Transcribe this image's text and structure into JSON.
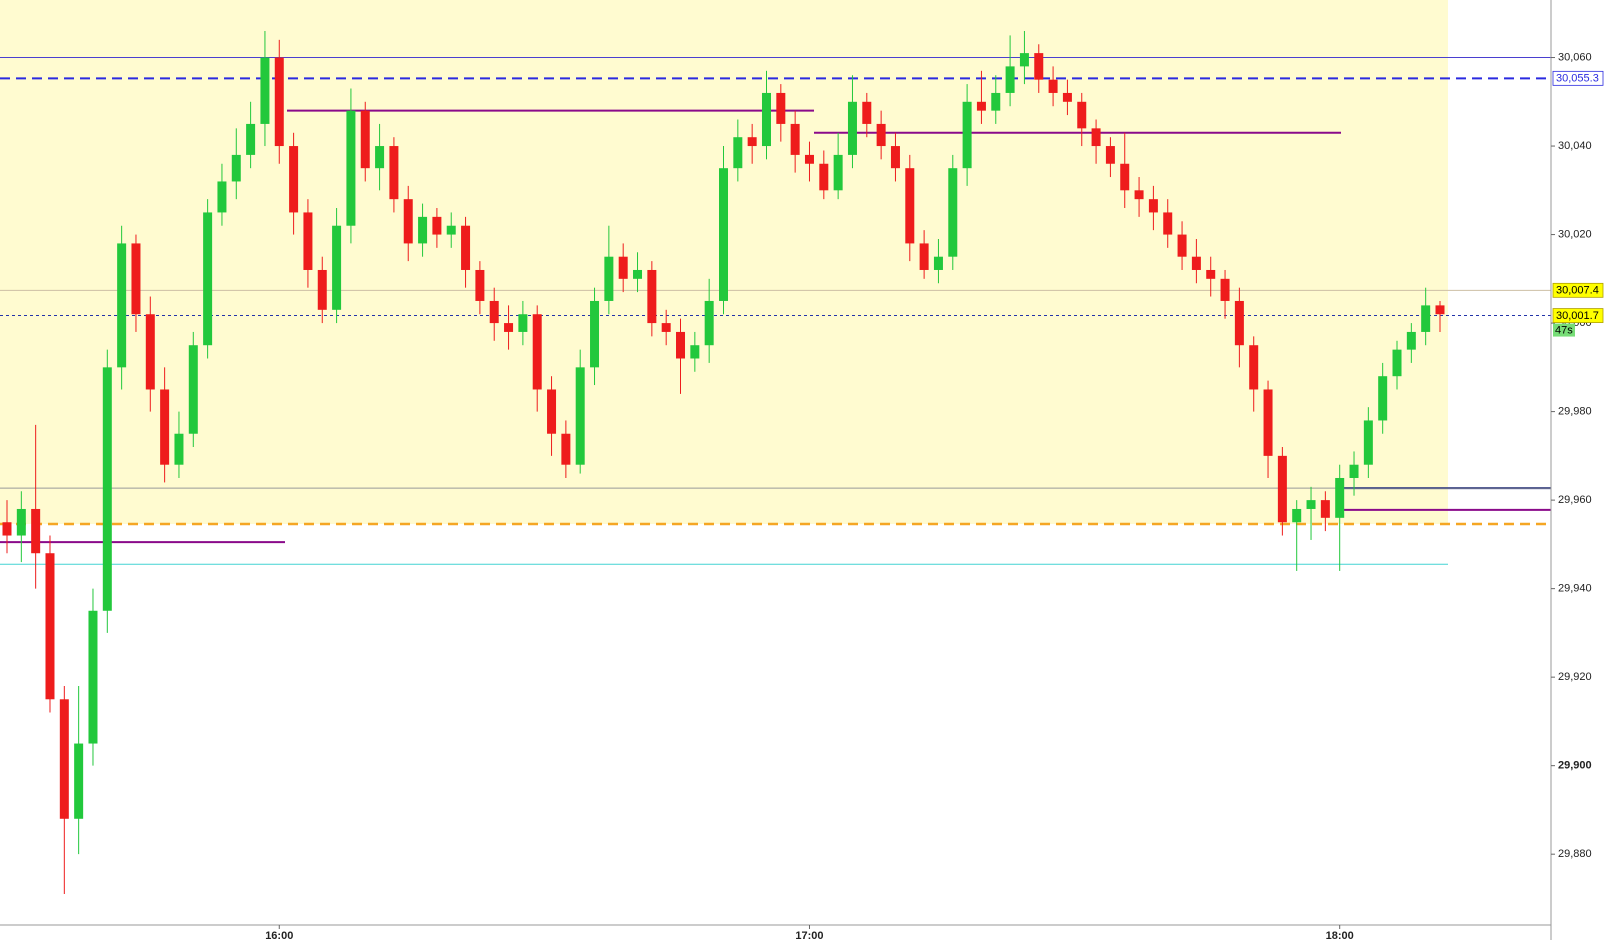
{
  "chart_data": {
    "type": "candlestick",
    "x": [
      null,
      null,
      null,
      null,
      null,
      null,
      null,
      null,
      null,
      null,
      null,
      null,
      null,
      null,
      null,
      null,
      null,
      null,
      null,
      "16:00",
      null,
      null,
      null,
      null,
      null,
      null,
      null,
      null,
      null,
      null,
      null,
      null,
      null,
      null,
      null,
      null,
      null,
      null,
      null,
      null,
      null,
      null,
      null,
      null,
      null,
      null,
      null,
      null,
      null,
      null,
      null,
      null,
      null,
      null,
      null,
      null,
      "17:00",
      null,
      null,
      null,
      null,
      null,
      null,
      null,
      null,
      null,
      null,
      null,
      null,
      null,
      null,
      null,
      null,
      null,
      null,
      null,
      null,
      null,
      null,
      null,
      null,
      null,
      null,
      null,
      null,
      null,
      null,
      null,
      null,
      null,
      null,
      null,
      null,
      "18:00",
      null,
      null,
      null,
      null,
      null,
      null,
      null
    ],
    "open": [
      29955,
      29952,
      29958,
      29948,
      29915,
      29888,
      29905,
      29935,
      29990,
      30018,
      30002,
      29985,
      29968,
      29975,
      29995,
      30025,
      30032,
      30038,
      30045,
      30060,
      30040,
      30025,
      30012,
      30003,
      30022,
      30048,
      30035,
      30040,
      30028,
      30018,
      30024,
      30020,
      30022,
      30012,
      30005,
      30000,
      29998,
      30002,
      29985,
      29975,
      29968,
      29990,
      30005,
      30015,
      30010,
      30012,
      30000,
      29998,
      29992,
      29995,
      30005,
      30035,
      30042,
      30040,
      30052,
      30045,
      30038,
      30036,
      30030,
      30038,
      30050,
      30045,
      30040,
      30035,
      30018,
      30012,
      30015,
      30035,
      30050,
      30048,
      30052,
      30058,
      30061,
      30055,
      30052,
      30050,
      30044,
      30040,
      30036,
      30030,
      30028,
      30025,
      30020,
      30015,
      30012,
      30010,
      30005,
      29995,
      29985,
      29970,
      29955,
      29958,
      29960,
      29956,
      29965,
      29968,
      29978,
      29988,
      29994,
      29998,
      30004
    ],
    "high": [
      29960,
      29962,
      29977,
      29952,
      29918,
      29918,
      29940,
      29994,
      30022,
      30020,
      30006,
      29990,
      29980,
      29998,
      30028,
      30036,
      30044,
      30050,
      30066,
      30064,
      30043,
      30028,
      30015,
      30026,
      30053,
      30050,
      30045,
      30042,
      30031,
      30027,
      30026,
      30025,
      30024,
      30014,
      30008,
      30004,
      30005,
      30004,
      29988,
      29978,
      29994,
      30008,
      30022,
      30018,
      30016,
      30014,
      30003,
      30001,
      29998,
      30010,
      30040,
      30046,
      30045,
      30057,
      30054,
      30048,
      30041,
      30039,
      30043,
      30056,
      30052,
      30048,
      30043,
      30038,
      30021,
      30019,
      30038,
      30054,
      30057,
      30056,
      30065,
      30066,
      30063,
      30058,
      30055,
      30052,
      30046,
      30042,
      30043,
      30033,
      30031,
      30028,
      30023,
      30019,
      30015,
      30012,
      30008,
      29997,
      29987,
      29972,
      29960,
      29963,
      29962,
      29968,
      29971,
      29981,
      29991,
      29996,
      30000,
      30008,
      30005
    ],
    "low": [
      29948,
      29946,
      29940,
      29912,
      29871,
      29880,
      29900,
      29930,
      29985,
      29998,
      29980,
      29964,
      29965,
      29972,
      29992,
      30022,
      30028,
      30035,
      30040,
      30036,
      30020,
      30008,
      30000,
      30000,
      30018,
      30032,
      30030,
      30025,
      30014,
      30015,
      30017,
      30017,
      30008,
      30002,
      29996,
      29994,
      29995,
      29980,
      29970,
      29965,
      29966,
      29986,
      30002,
      30007,
      30007,
      29997,
      29995,
      29984,
      29989,
      29991,
      30002,
      30032,
      30036,
      30037,
      30041,
      30034,
      30032,
      30028,
      30028,
      30035,
      30042,
      30037,
      30032,
      30014,
      30010,
      30009,
      30012,
      30031,
      30045,
      30045,
      30049,
      30054,
      30052,
      30049,
      30047,
      30040,
      30036,
      30033,
      30026,
      30024,
      30021,
      30017,
      30012,
      30009,
      30006,
      30001,
      29990,
      29980,
      29965,
      29952,
      29944,
      29951,
      29953,
      29944,
      29961,
      29965,
      29975,
      29985,
      29991,
      29995,
      29998
    ],
    "close": [
      29952,
      29958,
      29948,
      29915,
      29888,
      29905,
      29935,
      29990,
      30018,
      30002,
      29985,
      29968,
      29975,
      29995,
      30025,
      30032,
      30038,
      30045,
      30060,
      30040,
      30025,
      30012,
      30003,
      30022,
      30048,
      30035,
      30040,
      30028,
      30018,
      30024,
      30020,
      30022,
      30012,
      30005,
      30000,
      29998,
      30002,
      29985,
      29975,
      29968,
      29990,
      30005,
      30015,
      30010,
      30012,
      30000,
      29998,
      29992,
      29995,
      30005,
      30035,
      30042,
      30040,
      30052,
      30045,
      30038,
      30036,
      30030,
      30038,
      30050,
      30045,
      30040,
      30035,
      30018,
      30012,
      30015,
      30035,
      30050,
      30048,
      30052,
      30058,
      30061,
      30055,
      30052,
      30050,
      30044,
      30040,
      30036,
      30030,
      30028,
      30025,
      30020,
      30015,
      30012,
      30010,
      30005,
      29995,
      29985,
      29970,
      29955,
      29958,
      29960,
      29956,
      29965,
      29968,
      29978,
      29988,
      29994,
      29998,
      30004,
      30002
    ],
    "up_color": "#22c83c",
    "down_color": "#ee1c1c",
    "ylim": [
      29864,
      30073
    ],
    "yticks": [
      {
        "value": 29880,
        "label": "29,880"
      },
      {
        "value": 29900,
        "label": "29,900"
      },
      {
        "value": 29920,
        "label": "29,920"
      },
      {
        "value": 29940,
        "label": "29,940"
      },
      {
        "value": 29960,
        "label": "29,960"
      },
      {
        "value": 29980,
        "label": "29,980"
      },
      {
        "value": 30000,
        "label": "30,000"
      },
      {
        "value": 30020,
        "label": "30,020"
      },
      {
        "value": 30040,
        "label": "30,040"
      },
      {
        "value": 30060,
        "label": "30,060"
      }
    ],
    "levels": [
      {
        "value": 30060,
        "color": "#4a3fd0",
        "style": "solid"
      },
      {
        "value": 30055.3,
        "color": "#2a2ae0",
        "style": "dashed"
      },
      {
        "value": 30048,
        "color": "#8a0a8a",
        "style": "solid"
      },
      {
        "value": 30043,
        "color": "#8a0a8a",
        "style": "solid"
      },
      {
        "value": 29950.5,
        "color": "#8a0a8a",
        "style": "solid"
      },
      {
        "value": 29957.8,
        "color": "#8a0a8a",
        "style": "solid"
      },
      {
        "value": 29962.7,
        "color": "#00107a",
        "style": "solid"
      },
      {
        "value": 29962.7,
        "color": "#999999",
        "style": "solid"
      },
      {
        "value": 30007.4,
        "color": "#cdbfa5",
        "style": "solid"
      },
      {
        "value": 29954.6,
        "color": "#f5a623",
        "style": "dashed"
      },
      {
        "value": 29945.5,
        "color": "#44d4d4",
        "style": "solid"
      },
      {
        "value": 30001.7,
        "color": "#2233aa",
        "style": "dotted"
      }
    ],
    "price_tags": [
      {
        "value": 30055.3,
        "label": "30,055.3",
        "color": "#ffffff",
        "text_color": "#2a2ae0"
      },
      {
        "value": 30007.4,
        "label": "30,007.4",
        "color": "#ffff00",
        "text_color": "#000000"
      },
      {
        "value": 30001.7,
        "label": "30,001.7",
        "color": "#ffff00",
        "text_color": "#000000"
      }
    ],
    "countdown": "47s",
    "countdown_color": "#77dd77",
    "session_background": "#fffbd0"
  }
}
